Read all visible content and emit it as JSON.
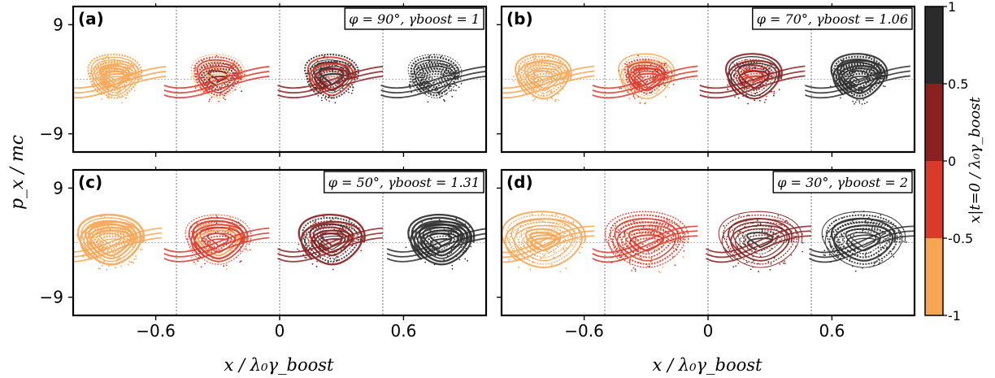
{
  "figure": {
    "ylabel": "p_x / mc",
    "xlabel": "x / λ₀γ_boost",
    "colorbar": {
      "label": "x|t=0 / λ₀γ_boost",
      "ticks": [
        "1",
        "0.5",
        "0",
        "-0.5",
        "-1"
      ],
      "bands": [
        {
          "range": [
            0.5,
            1
          ],
          "color": "#2b2b2b"
        },
        {
          "range": [
            0,
            0.5
          ],
          "color": "#8a2020"
        },
        {
          "range": [
            -0.5,
            0
          ],
          "color": "#d93a2a"
        },
        {
          "range": [
            -1,
            -0.5
          ],
          "color": "#f7a553"
        }
      ]
    }
  },
  "chart_data": [
    {
      "type": "scatter",
      "panel_label": "(a)",
      "annotation": "φ = 90°, γboost = 1",
      "phi_deg": 90,
      "gamma_boost": 1,
      "xlim": [
        -1.0,
        1.0
      ],
      "ylim": [
        -12,
        12
      ],
      "x_ticks": [
        "-0.6",
        "0",
        "0.6"
      ],
      "y_ticks": [
        "9",
        "-9"
      ],
      "vlines": [
        -0.5,
        0,
        0.5
      ],
      "vortex_centers": [
        -0.8,
        -0.3,
        0.25,
        0.75
      ],
      "amplitude": 7,
      "shear": 1
    },
    {
      "type": "scatter",
      "panel_label": "(b)",
      "annotation": "φ = 70°, γboost = 1.06",
      "phi_deg": 70,
      "gamma_boost": 1.06,
      "xlim": [
        -1.0,
        1.0
      ],
      "ylim": [
        -12,
        12
      ],
      "x_ticks": [
        "-0.6",
        "0",
        "0.6"
      ],
      "y_ticks": [
        "9",
        "-9"
      ],
      "vlines": [
        -0.5,
        0,
        0.5
      ],
      "vortex_centers": [
        -0.8,
        -0.3,
        0.22,
        0.73
      ],
      "amplitude": 7.2,
      "shear": 1.05
    },
    {
      "type": "scatter",
      "panel_label": "(c)",
      "annotation": "φ = 50°, γboost = 1.31",
      "phi_deg": 50,
      "gamma_boost": 1.31,
      "xlim": [
        -1.0,
        1.0
      ],
      "ylim": [
        -12,
        12
      ],
      "x_ticks": [
        "-0.6",
        "0",
        "0.6"
      ],
      "y_ticks": [
        "9",
        "-9"
      ],
      "vlines": [
        -0.5,
        0,
        0.5
      ],
      "vortex_centers": [
        -0.82,
        -0.3,
        0.25,
        0.78
      ],
      "amplitude": 8,
      "shear": 1.25
    },
    {
      "type": "scatter",
      "panel_label": "(d)",
      "annotation": "φ = 30°, γboost = 2",
      "phi_deg": 30,
      "gamma_boost": 2,
      "xlim": [
        -1.0,
        1.0
      ],
      "ylim": [
        -12,
        12
      ],
      "x_ticks": [
        "-0.6",
        "0",
        "0.6"
      ],
      "y_ticks": [
        "9",
        "-9"
      ],
      "vlines": [
        -0.5,
        0,
        0.5
      ],
      "vortex_centers": [
        -0.8,
        -0.3,
        0.25,
        0.75
      ],
      "amplitude": 9,
      "shear": 1.6
    }
  ]
}
